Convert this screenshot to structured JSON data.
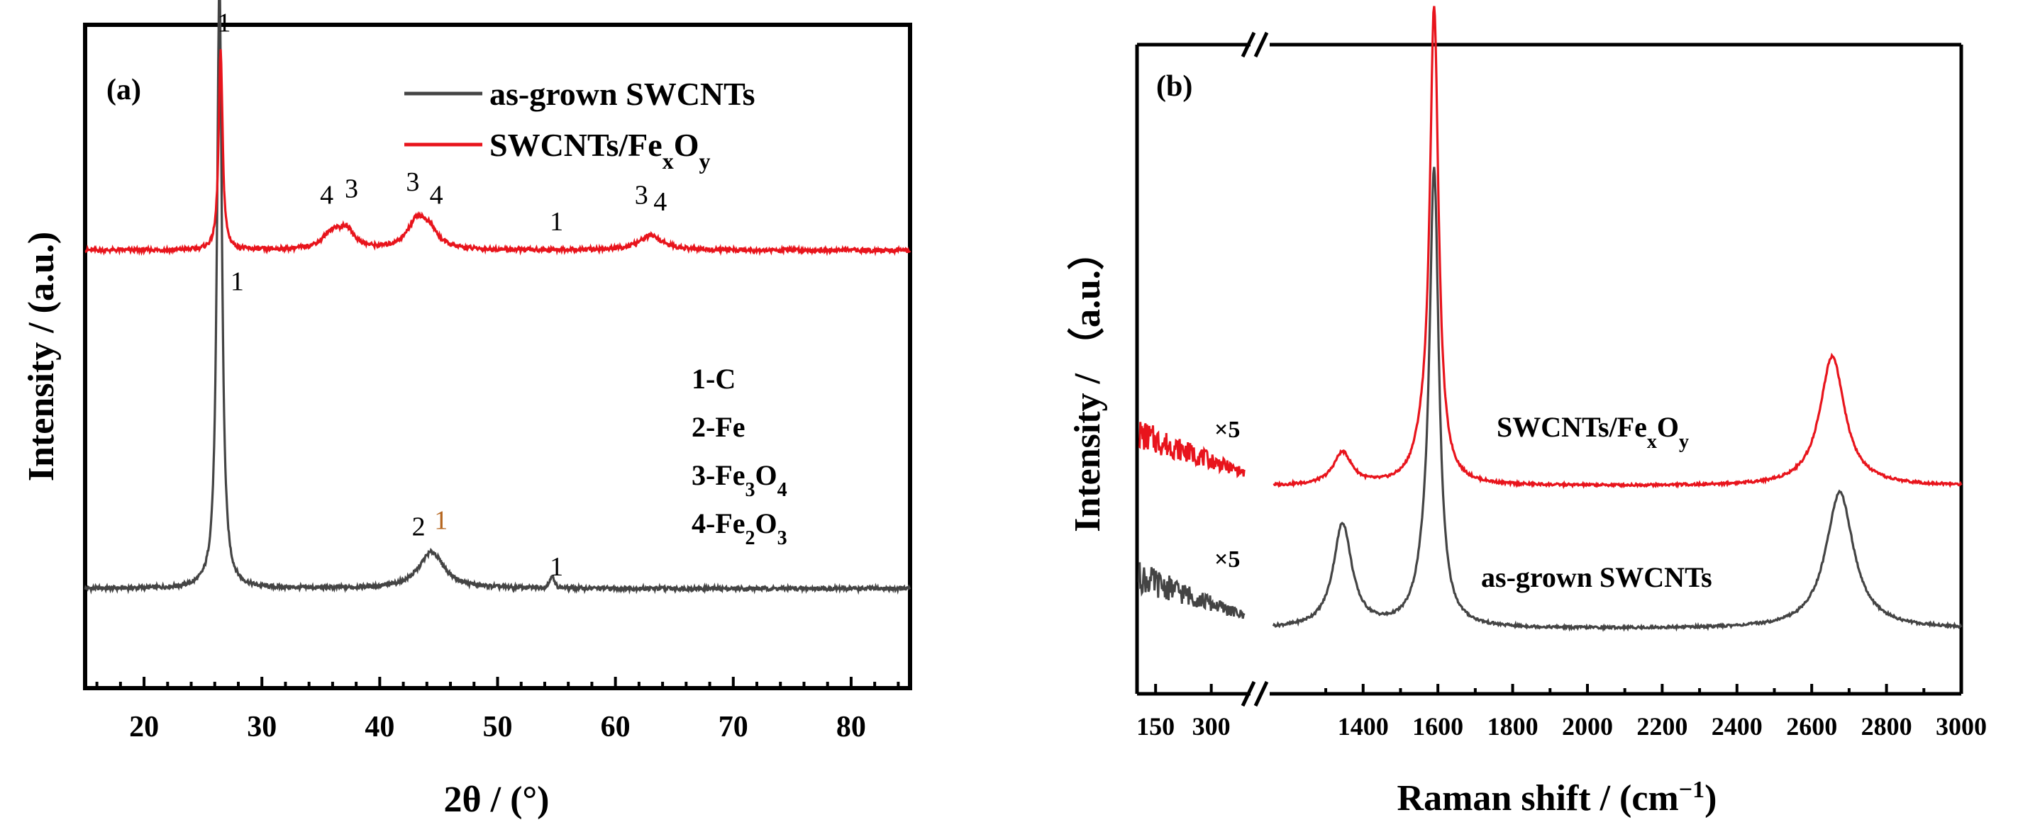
{
  "colors": {
    "black_series": "#444444",
    "red_series": "#e8141c",
    "axis": "#000000"
  },
  "chart_data": [
    {
      "type": "line",
      "panel_label": "(a)",
      "xlabel": "2θ / (°)",
      "ylabel": "Intensity / (a.u.)",
      "xlim": [
        15,
        85
      ],
      "xticks": [
        "20",
        "30",
        "40",
        "50",
        "60",
        "70",
        "80"
      ],
      "xtick_values": [
        20,
        30,
        40,
        50,
        60,
        70,
        80
      ],
      "legend": [
        {
          "name": "as-grown SWCNTs",
          "color": "#444444"
        },
        {
          "name": "SWCNTs/FexOy",
          "color": "#e8141c",
          "text_main": "SWCNTs/Fe",
          "sub1": "x",
          "text_mid": "O",
          "sub2": "y"
        }
      ],
      "series": [
        {
          "name": "as-grown SWCNTs",
          "color": "#444444",
          "baseline": 0.15,
          "peaks": [
            {
              "x": 26.4,
              "height": 0.92,
              "width": 0.25
            },
            {
              "x": 44.4,
              "height": 0.055,
              "width": 1.3
            },
            {
              "x": 54.6,
              "height": 0.02,
              "width": 0.2
            }
          ]
        },
        {
          "name": "SWCNTs/FexOy",
          "color": "#e8141c",
          "baseline": 0.66,
          "peaks": [
            {
              "x": 26.5,
              "height": 0.3,
              "width": 0.2
            },
            {
              "x": 36.0,
              "height": 0.025,
              "width": 1.0
            },
            {
              "x": 37.2,
              "height": 0.025,
              "width": 0.8
            },
            {
              "x": 43.2,
              "height": 0.045,
              "width": 1.0
            },
            {
              "x": 44.3,
              "height": 0.02,
              "width": 0.8
            },
            {
              "x": 63.0,
              "height": 0.022,
              "width": 1.2
            }
          ]
        }
      ],
      "peak_labels": [
        {
          "text": "1",
          "x": 26.8,
          "y": 0.99,
          "color": "#000000"
        },
        {
          "text": "4",
          "x": 35.5,
          "y": 0.73,
          "color": "#000000"
        },
        {
          "text": "3",
          "x": 37.6,
          "y": 0.74,
          "color": "#000000"
        },
        {
          "text": "3",
          "x": 42.8,
          "y": 0.75,
          "color": "#000000"
        },
        {
          "text": "4",
          "x": 44.8,
          "y": 0.73,
          "color": "#000000"
        },
        {
          "text": "1",
          "x": 55.0,
          "y": 0.69,
          "color": "#000000"
        },
        {
          "text": "3",
          "x": 62.2,
          "y": 0.73,
          "color": "#000000"
        },
        {
          "text": "4",
          "x": 63.8,
          "y": 0.72,
          "color": "#000000"
        },
        {
          "text": "1",
          "x": 27.9,
          "y": 0.6,
          "color": "#000000"
        },
        {
          "text": "2",
          "x": 43.3,
          "y": 0.23,
          "color": "#000000"
        },
        {
          "text": "1",
          "x": 45.2,
          "y": 0.24,
          "color": "#b5651d"
        },
        {
          "text": "1",
          "x": 55.0,
          "y": 0.17,
          "color": "#000000"
        }
      ],
      "phase_key": [
        {
          "prefix": "1-C",
          "parts": []
        },
        {
          "prefix": "2-Fe",
          "parts": []
        },
        {
          "prefix": "3-Fe",
          "sub1": "3",
          "mid": "O",
          "sub2": "4"
        },
        {
          "prefix": "4-Fe",
          "sub1": "2",
          "mid": "O",
          "sub2": "3"
        }
      ]
    },
    {
      "type": "line",
      "panel_label": "(b)",
      "xlabel_main": "Raman shift / (cm",
      "xlabel_sup": "−1",
      "xlabel_end": ")",
      "ylabel": "Intensity / （a.u.）",
      "broken_axis": true,
      "xticks_left": [
        "150",
        "300"
      ],
      "xticks_right": [
        "1400",
        "1600",
        "1800",
        "2000",
        "2200",
        "2400",
        "2600",
        "2800",
        "3000"
      ],
      "xtick_values_right": [
        1400,
        1600,
        1800,
        2000,
        2200,
        2400,
        2600,
        2800,
        3000
      ],
      "xlim_left": [
        100,
        400
      ],
      "xlim_right": [
        1150,
        3000
      ],
      "multiplier_label": "×5",
      "series": [
        {
          "name": "SWCNTs/FexOy",
          "color": "#e8141c",
          "label_main": "SWCNTs/Fe",
          "label_sub1": "x",
          "label_mid": "O",
          "label_sub2": "y",
          "baseline": 0.32,
          "peaks": [
            {
              "x": 1345,
              "height": 0.05,
              "width": 30
            },
            {
              "x": 1590,
              "height": 0.72,
              "width": 14
            },
            {
              "x": 1560,
              "height": 0.04,
              "width": 30
            },
            {
              "x": 2655,
              "height": 0.2,
              "width": 40
            }
          ]
        },
        {
          "name": "as-grown SWCNTs",
          "color": "#444444",
          "baseline": 0.1,
          "peaks": [
            {
              "x": 1345,
              "height": 0.16,
              "width": 30
            },
            {
              "x": 1590,
              "height": 0.68,
              "width": 15
            },
            {
              "x": 1565,
              "height": 0.05,
              "width": 30
            },
            {
              "x": 2675,
              "height": 0.21,
              "width": 45
            }
          ]
        }
      ]
    }
  ]
}
